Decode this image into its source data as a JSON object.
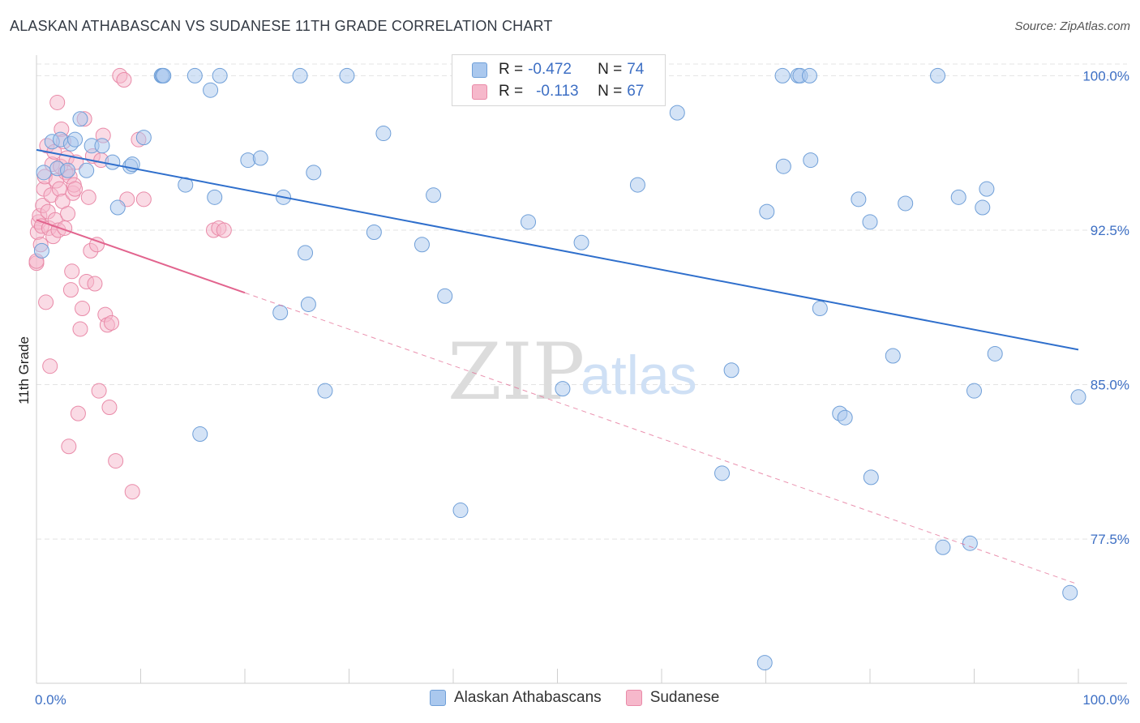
{
  "title": "ALASKAN ATHABASCAN VS SUDANESE 11TH GRADE CORRELATION CHART",
  "source": "Source: ZipAtlas.com",
  "watermark": {
    "zip": "ZIP",
    "atlas": "atlas"
  },
  "colors": {
    "blue_fill": "#aac8ee",
    "blue_stroke": "#6f9fd8",
    "blue_line": "#2f6fcc",
    "pink_fill": "#f6b8cb",
    "pink_stroke": "#e98aa8",
    "pink_line": "#e2648e",
    "grid": "#e3e3e3",
    "tick_text": "#3d6fc4"
  },
  "legend": {
    "rows": [
      {
        "r_label": "R = ",
        "r_value": "-0.472",
        "n_label": "N = ",
        "n_value": "74",
        "series": "Alaskan Athabascans"
      },
      {
        "r_label": "R = ",
        "r_value": "-0.113",
        "n_label": "N = ",
        "n_value": "67",
        "series": "Sudanese"
      }
    ]
  },
  "chart_data": {
    "type": "scatter",
    "title": "ALASKAN ATHABASCAN VS SUDANESE 11TH GRADE CORRELATION CHART",
    "xlabel": "",
    "ylabel": "11th Grade",
    "xlim": [
      0,
      100
    ],
    "ylim": [
      70.5,
      101
    ],
    "x_tick_labels": [
      "0.0%",
      "100.0%"
    ],
    "y_ticks": [
      100.0,
      92.5,
      85.0,
      77.5
    ],
    "y_tick_labels": [
      "100.0%",
      "92.5%",
      "85.0%",
      "77.5%"
    ],
    "legend_position": "bottom",
    "series": [
      {
        "name": "Alaskan Athabascans",
        "color": "#aac8ee",
        "trend": {
          "x0": 0,
          "y0": 96.4,
          "x1": 100,
          "y1": 86.7,
          "solid_until": 100
        },
        "points": [
          [
            0.5,
            91.5
          ],
          [
            0.7,
            95.3
          ],
          [
            1.5,
            96.8
          ],
          [
            2.0,
            95.5
          ],
          [
            2.3,
            96.9
          ],
          [
            3.0,
            95.4
          ],
          [
            3.3,
            96.7
          ],
          [
            3.7,
            96.9
          ],
          [
            4.2,
            97.9
          ],
          [
            4.8,
            95.4
          ],
          [
            5.3,
            96.6
          ],
          [
            6.3,
            96.6
          ],
          [
            7.3,
            95.8
          ],
          [
            7.8,
            93.6
          ],
          [
            9.0,
            95.6
          ],
          [
            9.2,
            95.7
          ],
          [
            10.3,
            97.0
          ],
          [
            12.0,
            100.0
          ],
          [
            12.1,
            100.0
          ],
          [
            12.2,
            100.0
          ],
          [
            14.3,
            94.7
          ],
          [
            15.2,
            100.0
          ],
          [
            15.7,
            82.6
          ],
          [
            16.7,
            99.3
          ],
          [
            17.1,
            94.1
          ],
          [
            17.6,
            100.0
          ],
          [
            20.3,
            95.9
          ],
          [
            21.5,
            96.0
          ],
          [
            23.4,
            88.5
          ],
          [
            23.7,
            94.1
          ],
          [
            25.3,
            100.0
          ],
          [
            25.8,
            91.4
          ],
          [
            26.1,
            88.9
          ],
          [
            26.6,
            95.3
          ],
          [
            27.7,
            84.7
          ],
          [
            29.8,
            100.0
          ],
          [
            32.4,
            92.4
          ],
          [
            33.3,
            97.2
          ],
          [
            37.0,
            91.8
          ],
          [
            38.1,
            94.2
          ],
          [
            39.2,
            89.3
          ],
          [
            40.7,
            78.9
          ],
          [
            47.2,
            92.9
          ],
          [
            50.5,
            84.8
          ],
          [
            52.3,
            91.9
          ],
          [
            57.7,
            94.7
          ],
          [
            61.5,
            98.2
          ],
          [
            65.8,
            80.7
          ],
          [
            66.7,
            85.7
          ],
          [
            69.9,
            71.5
          ],
          [
            70.1,
            93.4
          ],
          [
            71.6,
            100.0
          ],
          [
            71.7,
            95.6
          ],
          [
            73.1,
            100.0
          ],
          [
            73.3,
            100.0
          ],
          [
            74.2,
            100.0
          ],
          [
            74.3,
            95.9
          ],
          [
            75.2,
            88.7
          ],
          [
            77.1,
            83.6
          ],
          [
            77.6,
            83.4
          ],
          [
            78.9,
            94.0
          ],
          [
            80.0,
            92.9
          ],
          [
            80.1,
            80.5
          ],
          [
            82.2,
            86.4
          ],
          [
            83.4,
            93.8
          ],
          [
            86.5,
            100.0
          ],
          [
            87.0,
            77.1
          ],
          [
            88.5,
            94.1
          ],
          [
            89.6,
            77.3
          ],
          [
            90.0,
            84.7
          ],
          [
            90.8,
            93.6
          ],
          [
            91.2,
            94.5
          ],
          [
            92.0,
            86.5
          ],
          [
            99.2,
            74.9
          ],
          [
            100.0,
            84.4
          ]
        ]
      },
      {
        "name": "Sudanese",
        "color": "#f6b8cb",
        "trend": {
          "x0": 0,
          "y0": 93.0,
          "x1": 100,
          "y1": 75.3,
          "solid_until": 20
        },
        "points": [
          [
            0.0,
            90.9
          ],
          [
            0.1,
            92.4
          ],
          [
            0.2,
            92.9
          ],
          [
            0.3,
            93.2
          ],
          [
            0.4,
            91.8
          ],
          [
            0.5,
            92.7
          ],
          [
            0.6,
            93.7
          ],
          [
            0.7,
            94.5
          ],
          [
            0.8,
            95.1
          ],
          [
            0.9,
            89.0
          ],
          [
            1.0,
            96.6
          ],
          [
            1.1,
            93.4
          ],
          [
            1.2,
            92.6
          ],
          [
            1.3,
            85.9
          ],
          [
            1.4,
            94.2
          ],
          [
            1.5,
            95.7
          ],
          [
            1.6,
            92.2
          ],
          [
            1.7,
            96.3
          ],
          [
            1.8,
            93.0
          ],
          [
            1.9,
            94.9
          ],
          [
            2.0,
            98.7
          ],
          [
            2.1,
            92.5
          ],
          [
            2.2,
            94.5
          ],
          [
            2.3,
            95.6
          ],
          [
            2.4,
            97.4
          ],
          [
            2.5,
            93.9
          ],
          [
            2.6,
            96.8
          ],
          [
            2.7,
            92.6
          ],
          [
            2.8,
            95.3
          ],
          [
            2.9,
            96.0
          ],
          [
            3.0,
            93.3
          ],
          [
            3.1,
            82.0
          ],
          [
            3.2,
            95.1
          ],
          [
            3.3,
            89.6
          ],
          [
            3.4,
            90.5
          ],
          [
            3.5,
            94.3
          ],
          [
            3.6,
            94.7
          ],
          [
            3.7,
            94.5
          ],
          [
            3.8,
            95.8
          ],
          [
            4.0,
            83.6
          ],
          [
            4.2,
            87.7
          ],
          [
            4.4,
            88.7
          ],
          [
            4.6,
            97.9
          ],
          [
            4.8,
            90.0
          ],
          [
            5.0,
            94.1
          ],
          [
            5.2,
            91.5
          ],
          [
            5.4,
            96.1
          ],
          [
            5.6,
            89.9
          ],
          [
            5.8,
            91.8
          ],
          [
            6.0,
            84.7
          ],
          [
            6.2,
            95.9
          ],
          [
            6.4,
            97.1
          ],
          [
            6.6,
            88.4
          ],
          [
            6.8,
            87.9
          ],
          [
            7.0,
            83.9
          ],
          [
            7.2,
            88.0
          ],
          [
            7.6,
            81.3
          ],
          [
            8.0,
            100.0
          ],
          [
            8.4,
            99.8
          ],
          [
            8.7,
            94.0
          ],
          [
            9.2,
            79.8
          ],
          [
            9.8,
            96.9
          ],
          [
            10.3,
            94.0
          ],
          [
            17.0,
            92.5
          ],
          [
            17.5,
            92.6
          ],
          [
            18.0,
            92.5
          ],
          [
            0.0,
            91.0
          ]
        ]
      }
    ]
  },
  "bottom_legend": [
    {
      "label": "Alaskan Athabascans"
    },
    {
      "label": "Sudanese"
    }
  ]
}
